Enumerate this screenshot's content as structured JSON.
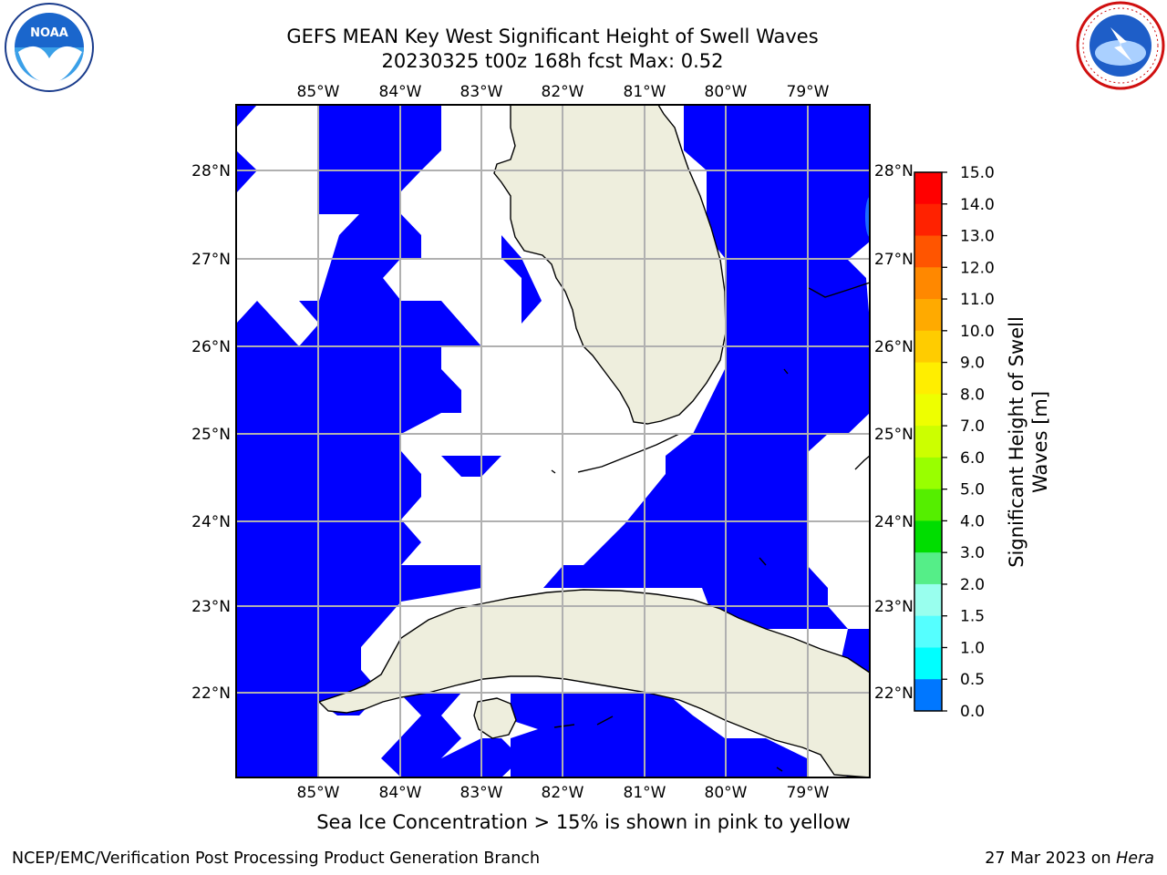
{
  "header": {
    "title_line1": "GEFS MEAN Key West Significant Height of Swell Waves",
    "title_line2": "20230325 t00z 168h fcst   Max: 0.52"
  },
  "logos": {
    "left": "NOAA",
    "right": "NATIONAL WEATHER SERVICE"
  },
  "map": {
    "lon_labels": [
      "85°W",
      "84°W",
      "83°W",
      "82°W",
      "81°W",
      "80°W",
      "79°W"
    ],
    "lat_labels": [
      "28°N",
      "27°N",
      "26°N",
      "25°N",
      "24°N",
      "23°N",
      "22°N"
    ],
    "colors": {
      "swell_low": "#0000ff",
      "land": "#eeeedd",
      "grid": "#b0b0b0"
    }
  },
  "colorbar": {
    "label": "Significant Height of Swell Waves [m]",
    "ticks": [
      "15.0",
      "14.0",
      "13.0",
      "12.0",
      "11.0",
      "10.0",
      "9.0",
      "8.0",
      "7.0",
      "6.0",
      "5.0",
      "4.0",
      "3.0",
      "2.0",
      "1.5",
      "1.0",
      "0.5",
      "0.0"
    ],
    "colors": [
      "#ff0000",
      "#ff2200",
      "#ff5500",
      "#ff8800",
      "#ffaa00",
      "#ffcc00",
      "#ffee00",
      "#eeff00",
      "#ccff00",
      "#99ff00",
      "#55ee00",
      "#00dd00",
      "#55ee88",
      "#99ffee",
      "#55ffff",
      "#00ffff",
      "#0077ff",
      "#0000ff"
    ]
  },
  "footer": {
    "note": "Sea Ice Concentration > 15% is shown in pink to yellow",
    "credit": "NCEP/EMC/Verification Post Processing Product Generation Branch",
    "date": "27 Mar 2023 on ",
    "host": "Hera"
  }
}
